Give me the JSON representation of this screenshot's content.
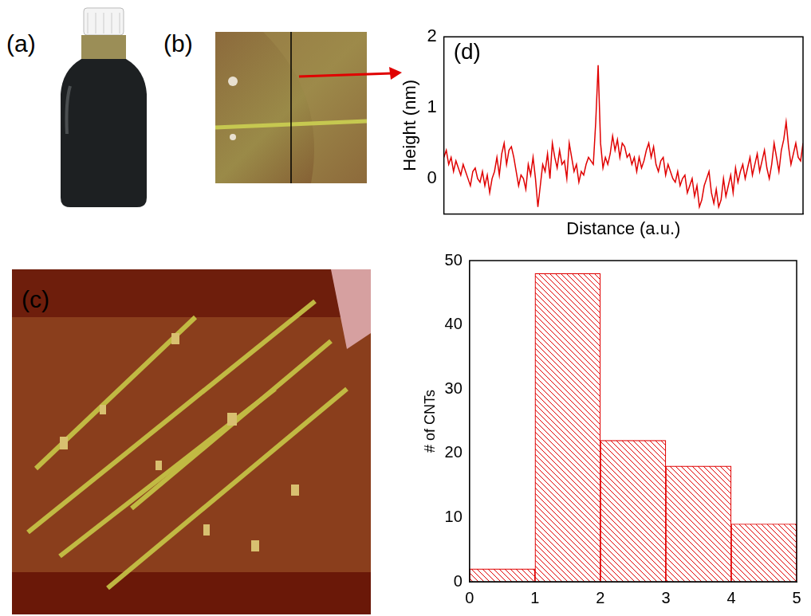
{
  "images": [
    {
      "label": "(a)"
    },
    {
      "label": "(b)"
    },
    {
      "label": "(c)"
    }
  ],
  "chart_data": [
    {
      "type": "line",
      "title": "(d)",
      "x_label": "Distance (a.u.)",
      "y_label": "Height (nm)",
      "color": "#e00000",
      "tick_labels": "y",
      "xlim": [
        0,
        149
      ],
      "ylim": [
        -0.5,
        2
      ],
      "yticks": [
        0,
        1,
        2
      ],
      "x": [
        0,
        1,
        2,
        3,
        4,
        5,
        6,
        7,
        8,
        9,
        10,
        11,
        12,
        13,
        14,
        15,
        16,
        17,
        18,
        19,
        20,
        21,
        22,
        23,
        24,
        25,
        26,
        27,
        28,
        29,
        30,
        31,
        32,
        33,
        34,
        35,
        36,
        37,
        38,
        39,
        40,
        41,
        42,
        43,
        44,
        45,
        46,
        47,
        48,
        49,
        50,
        51,
        52,
        53,
        54,
        55,
        56,
        57,
        58,
        59,
        60,
        61,
        62,
        63,
        64,
        65,
        66,
        67,
        68,
        69,
        70,
        71,
        72,
        73,
        74,
        75,
        76,
        77,
        78,
        79,
        80,
        81,
        82,
        83,
        84,
        85,
        86,
        87,
        88,
        89,
        90,
        91,
        92,
        93,
        94,
        95,
        96,
        97,
        98,
        99,
        100,
        101,
        102,
        103,
        104,
        105,
        106,
        107,
        108,
        109,
        110,
        111,
        112,
        113,
        114,
        115,
        116,
        117,
        118,
        119,
        120,
        121,
        122,
        123,
        124,
        125,
        126,
        127,
        128,
        129,
        130,
        131,
        132,
        133,
        134,
        135,
        136,
        137,
        138,
        139,
        140,
        141,
        142,
        143,
        144,
        145,
        146,
        147,
        148,
        149
      ],
      "values": [
        0.3,
        0.4,
        0.2,
        0.3,
        0.1,
        0.25,
        0.15,
        0.05,
        0.2,
        0.1,
        0.0,
        -0.1,
        0.1,
        0.15,
        0.0,
        -0.05,
        0.1,
        -0.1,
        0.05,
        -0.2,
        0.0,
        0.1,
        0.3,
        0.05,
        0.35,
        0.5,
        0.2,
        0.4,
        0.45,
        0.3,
        0.1,
        -0.1,
        0.05,
        0.0,
        -0.15,
        0.2,
        0.05,
        0.3,
        0.0,
        -0.4,
        -0.1,
        0.2,
        0.1,
        0.35,
        0.0,
        0.5,
        0.3,
        0.15,
        0.4,
        0.2,
        0.25,
        0.0,
        0.5,
        0.3,
        0.1,
        0.2,
        -0.05,
        0.1,
        0.05,
        0.2,
        0.3,
        0.25,
        0.2,
        0.8,
        1.6,
        0.5,
        0.15,
        0.3,
        0.2,
        0.35,
        0.6,
        0.4,
        0.55,
        0.3,
        0.5,
        0.45,
        0.3,
        0.35,
        0.2,
        0.3,
        0.1,
        0.3,
        0.15,
        0.25,
        0.4,
        0.5,
        0.3,
        0.45,
        0.2,
        0.1,
        0.25,
        0.3,
        0.05,
        0.2,
        0.1,
        0.0,
        -0.05,
        0.1,
        -0.1,
        0.0,
        0.05,
        -0.2,
        -0.1,
        0.0,
        -0.25,
        -0.1,
        -0.4,
        -0.3,
        -0.1,
        0.0,
        0.1,
        -0.2,
        -0.35,
        -0.15,
        -0.4,
        -0.3,
        0.0,
        -0.25,
        -0.1,
        0.05,
        -0.2,
        0.15,
        -0.05,
        0.1,
        0.2,
        0.0,
        0.15,
        0.3,
        0.05,
        0.2,
        0.35,
        0.1,
        0.25,
        0.4,
        0.15,
        0.0,
        0.2,
        0.5,
        0.3,
        0.1,
        0.4,
        0.55,
        0.8,
        0.45,
        0.2,
        0.35,
        0.5,
        0.3,
        0.25,
        0.5
      ]
    },
    {
      "type": "histogram",
      "y_label": "# of CNTs",
      "color": "#e00000",
      "bins": [
        0,
        1,
        2,
        3,
        4,
        5
      ],
      "values": [
        2,
        48,
        22,
        18,
        9
      ],
      "xlim": [
        0,
        5
      ],
      "xticks": [
        0,
        1,
        2,
        3,
        4,
        5
      ],
      "ylim": [
        0,
        50
      ],
      "yticks": [
        0,
        10,
        20,
        30,
        40,
        50
      ]
    }
  ]
}
